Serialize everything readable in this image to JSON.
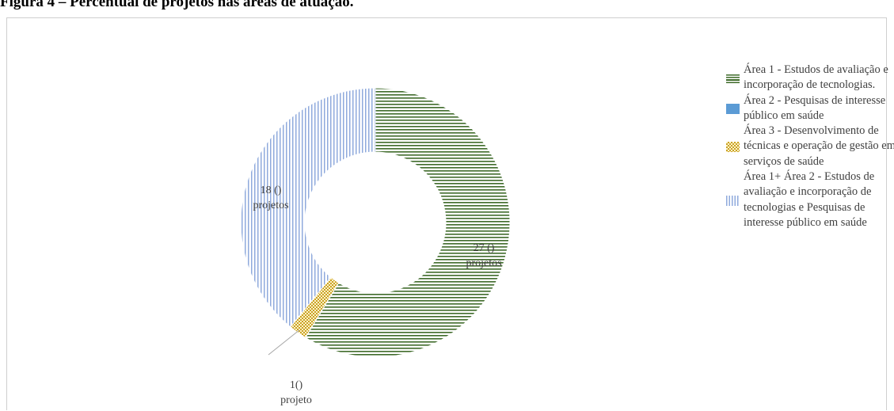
{
  "figure_title": "Figura 4 – Percentual de projetos nas áreas de atuação.",
  "colors": {
    "area1": "#3f6b2a",
    "area2": "#5b9bd5",
    "area3": "#c9a227",
    "area12": "#8faadc"
  },
  "chart_data": {
    "type": "pie",
    "variant": "donut",
    "legend_position": "right",
    "categories": [
      "Área 1 - Estudos de avaliação e incorporação de tecnologias.",
      "Área 2 - Pesquisas de interesse público em saúde",
      "Área 3 - Desenvolvimento de técnicas e operação de gestão em serviços de saúde",
      "Área 1+ Área 2  - Estudos de avaliação e incorporação de tecnologias e Pesquisas de interesse público em saúde"
    ],
    "values": [
      27,
      0,
      1,
      18
    ],
    "data_labels": [
      [
        "27 ()",
        "projetos"
      ],
      [],
      [
        "1()",
        "projeto"
      ],
      [
        "18 ()",
        "projetos"
      ]
    ]
  }
}
